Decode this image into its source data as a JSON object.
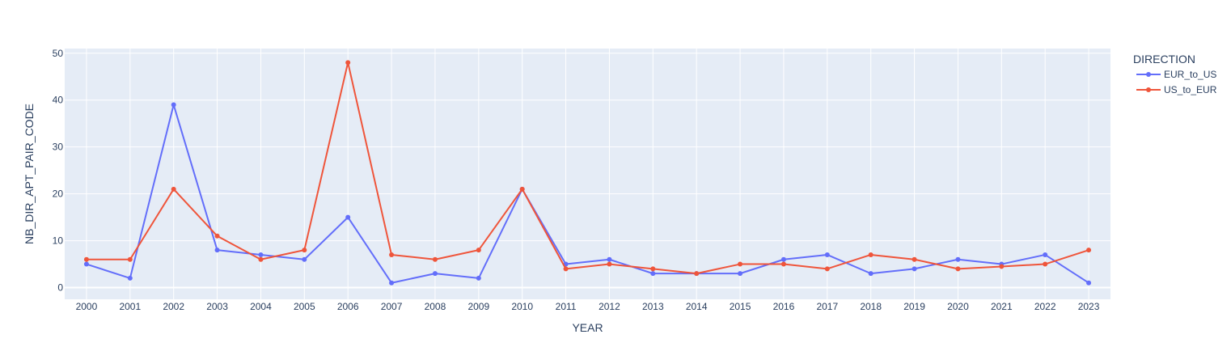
{
  "chart_data": {
    "type": "line",
    "title": "",
    "xlabel": "YEAR",
    "ylabel": "NB_DIR_APT_PAIR_CODE",
    "x": [
      2000,
      2001,
      2002,
      2003,
      2004,
      2005,
      2006,
      2007,
      2008,
      2009,
      2010,
      2011,
      2012,
      2013,
      2014,
      2015,
      2016,
      2017,
      2018,
      2019,
      2020,
      2021,
      2022,
      2023
    ],
    "x_tick_labels": [
      "2000",
      "2001",
      "2002",
      "2003",
      "2004",
      "2005",
      "2006",
      "2007",
      "2008",
      "2009",
      "2010",
      "2011",
      "2012",
      "2013",
      "2014",
      "2015",
      "2016",
      "2017",
      "2018",
      "2019",
      "2020",
      "2021",
      "2022",
      "2023"
    ],
    "y_ticks": [
      0,
      10,
      20,
      30,
      40,
      50
    ],
    "y_tick_labels": [
      "0",
      "10",
      "20",
      "30",
      "40",
      "50"
    ],
    "ylim": [
      -2.5,
      51
    ],
    "grid": true,
    "legend_title": "DIRECTION",
    "legend_placement": "right",
    "background_color": "#e5ecf6",
    "series": [
      {
        "name": "EUR_to_US",
        "color": "#636efa",
        "values": [
          5,
          2,
          39,
          8,
          7,
          6,
          15,
          1,
          3,
          2,
          21,
          5,
          6,
          3,
          3,
          3,
          6,
          7,
          3,
          4,
          6,
          5,
          7,
          1
        ]
      },
      {
        "name": "US_to_EUR",
        "color": "#ef553b",
        "values": [
          6,
          6,
          21,
          11,
          6,
          8,
          48,
          7,
          6,
          8,
          21,
          4,
          5,
          4,
          3,
          5,
          5,
          4,
          7,
          6,
          4,
          4.5,
          5,
          8
        ]
      }
    ]
  }
}
